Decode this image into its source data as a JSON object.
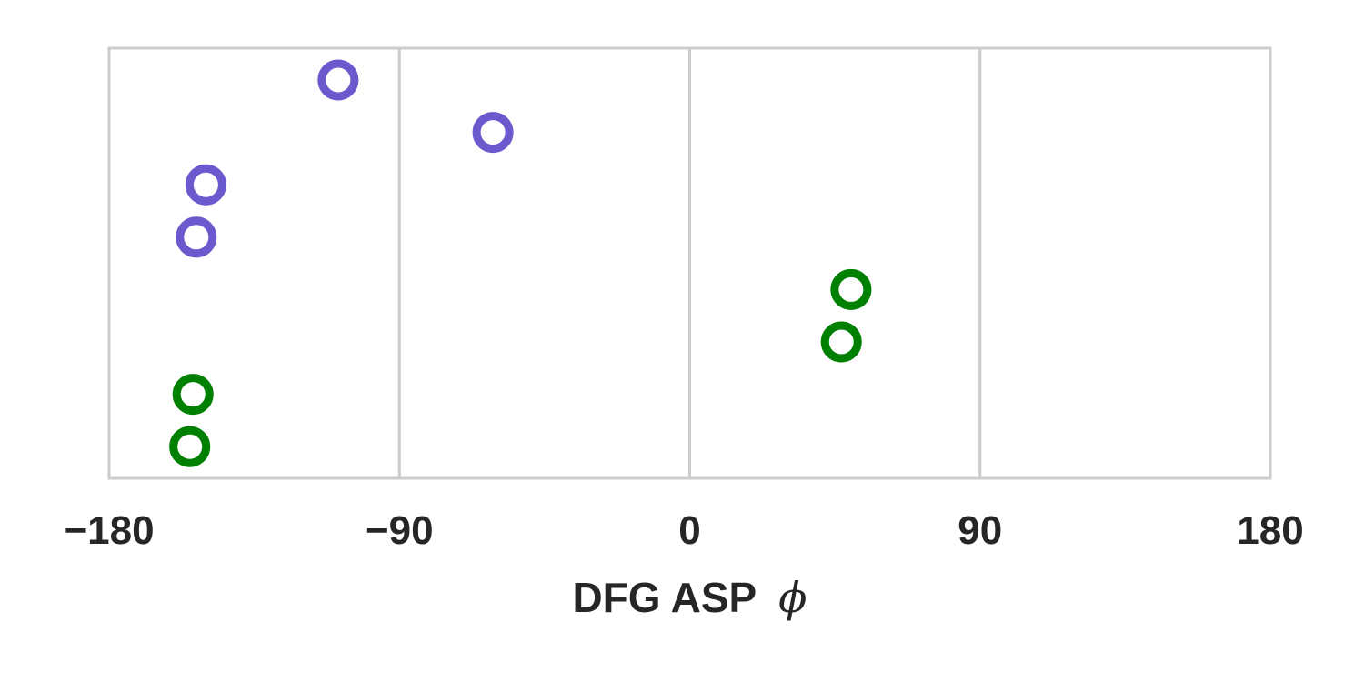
{
  "chart_data": {
    "type": "scatter",
    "title": "",
    "xlabel_text": "DFG ASP",
    "xlabel_symbol": "ϕ",
    "ylabel": "",
    "xlim": [
      -180,
      180
    ],
    "x_ticks": [
      -180,
      -90,
      0,
      90,
      180
    ],
    "x_tick_labels": [
      "−180",
      "−90",
      "0",
      "90",
      "180"
    ],
    "y_ticks_shown": false,
    "grid": "vertical",
    "marker": "hollow-circle",
    "row_count": 8,
    "series": [
      {
        "color": "#6a5acd",
        "points": [
          {
            "row": 0,
            "x": -109
          },
          {
            "row": 1,
            "x": -61
          },
          {
            "row": 2,
            "x": -150
          },
          {
            "row": 3,
            "x": -153
          }
        ]
      },
      {
        "color": "#008000",
        "points": [
          {
            "row": 4,
            "x": 50
          },
          {
            "row": 5,
            "x": 47
          },
          {
            "row": 6,
            "x": -154
          },
          {
            "row": 7,
            "x": -155
          }
        ]
      }
    ]
  }
}
